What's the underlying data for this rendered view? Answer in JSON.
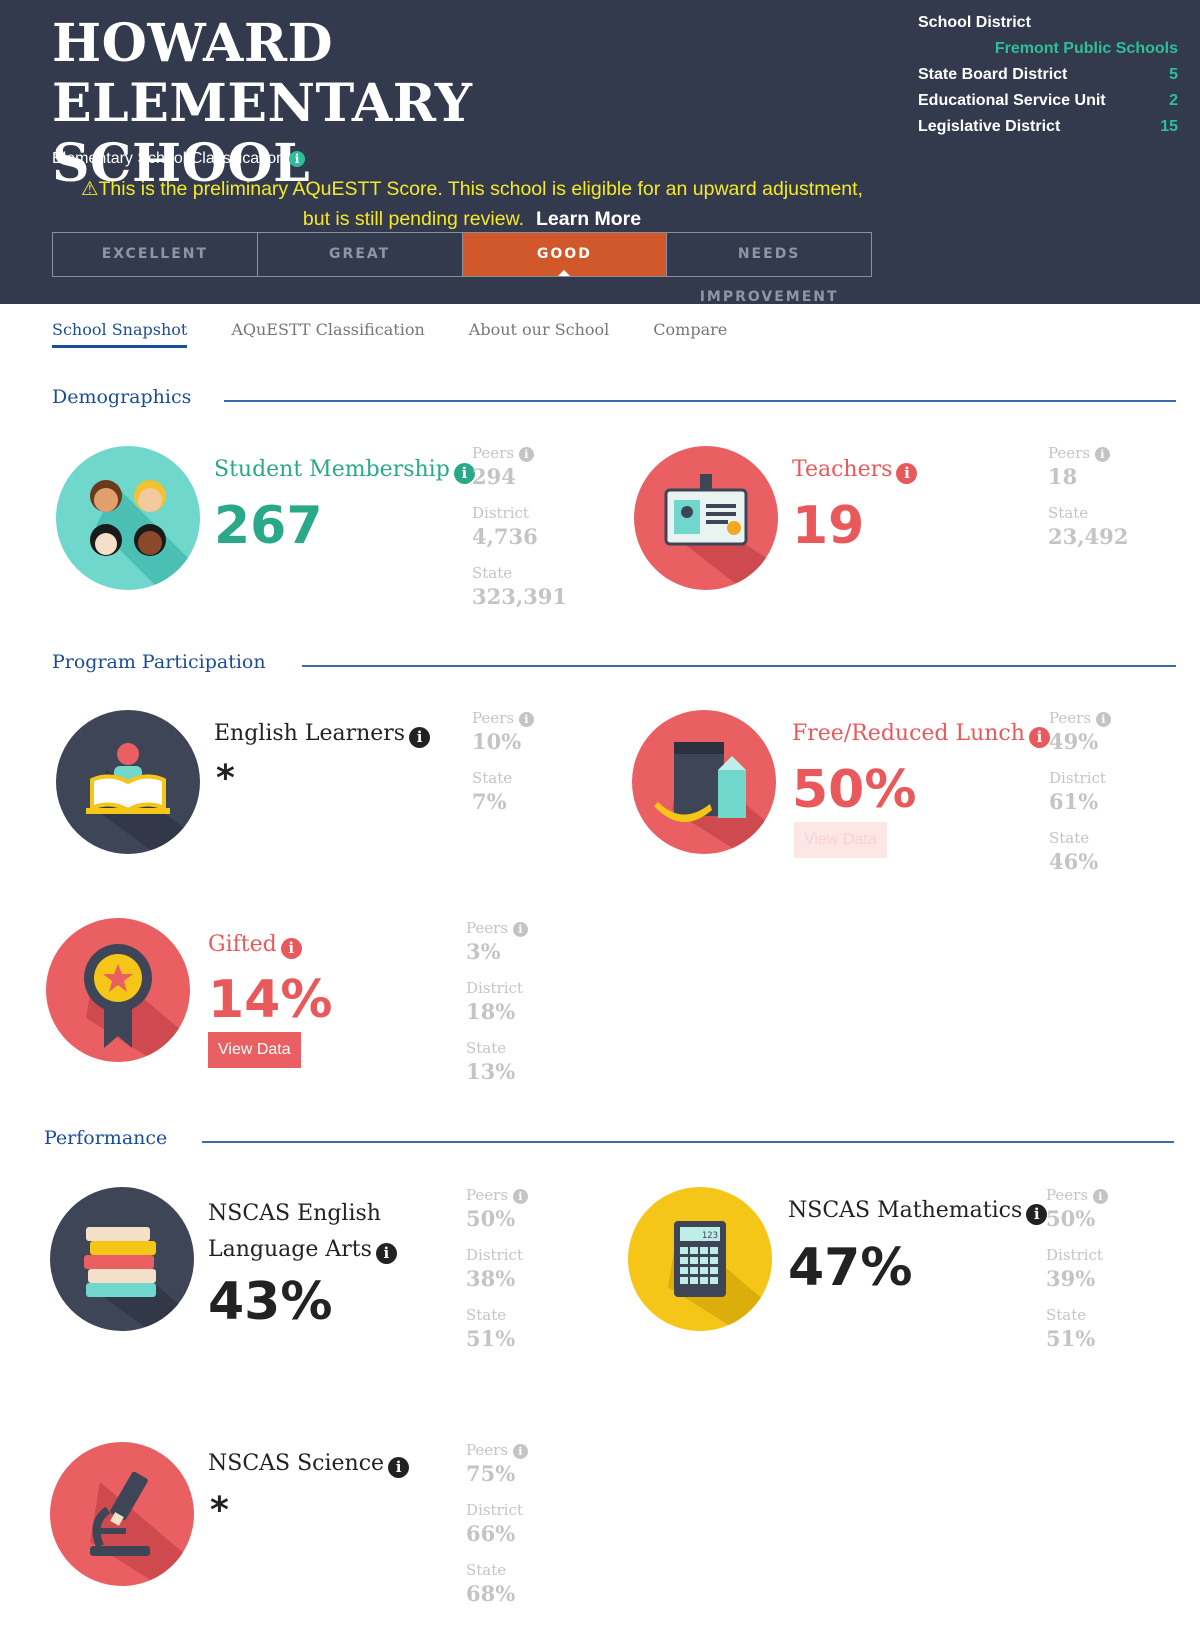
{
  "header": {
    "school_name": "HOWARD ELEMENTARY SCHOOL",
    "classification_label": "Elementary School Classification",
    "notice_line1": "This is the preliminary AQuESTT Score. This school is eligible for an upward adjustment,",
    "notice_line2": "but is still pending review.",
    "learn_more": "Learn More",
    "ratings": [
      "EXCELLENT",
      "GREAT",
      "GOOD",
      "NEEDS IMPROVEMENT"
    ],
    "active_rating": "GOOD"
  },
  "district_info": {
    "school_district_label": "School District",
    "school_district_value": "Fremont Public Schools",
    "rows": [
      {
        "label": "State Board District",
        "value": "5"
      },
      {
        "label": "Educational Service Unit",
        "value": "2"
      },
      {
        "label": "Legislative District",
        "value": "15"
      }
    ]
  },
  "tabs": [
    "School Snapshot",
    "AQuESTT Classification",
    "About our School",
    "Compare"
  ],
  "active_tab": "School Snapshot",
  "sections": {
    "demographics": "Demographics",
    "program": "Program Participation",
    "performance": "Performance"
  },
  "stats": {
    "student_membership": {
      "label": "Student Membership",
      "value": "267",
      "peers_label": "Peers",
      "peers": "294",
      "district_label": "District",
      "district": "4,736",
      "state_label": "State",
      "state": "323,391"
    },
    "teachers": {
      "label": "Teachers",
      "value": "19",
      "peers_label": "Peers",
      "peers": "18",
      "state_label": "State",
      "state": "23,492"
    },
    "english_learners": {
      "label": "English Learners",
      "value": "*",
      "peers_label": "Peers",
      "peers": "10%",
      "state_label": "State",
      "state": "7%"
    },
    "free_lunch": {
      "label": "Free/Reduced Lunch",
      "value": "50%",
      "button": "View Data",
      "peers_label": "Peers",
      "peers": "49%",
      "district_label": "District",
      "district": "61%",
      "state_label": "State",
      "state": "46%"
    },
    "gifted": {
      "label": "Gifted",
      "value": "14%",
      "button": "View Data",
      "peers_label": "Peers",
      "peers": "3%",
      "district_label": "District",
      "district": "18%",
      "state_label": "State",
      "state": "13%"
    },
    "ela": {
      "label_line1": "NSCAS English",
      "label_line2": "Language Arts",
      "value": "43%",
      "peers_label": "Peers",
      "peers": "50%",
      "district_label": "District",
      "district": "38%",
      "state_label": "State",
      "state": "51%"
    },
    "math": {
      "label": "NSCAS Mathematics",
      "value": "47%",
      "peers_label": "Peers",
      "peers": "50%",
      "district_label": "District",
      "district": "39%",
      "state_label": "State",
      "state": "51%"
    },
    "science": {
      "label": "NSCAS Science",
      "value": "*",
      "peers_label": "Peers",
      "peers": "75%",
      "district_label": "District",
      "district": "66%",
      "state_label": "State",
      "state": "68%"
    }
  },
  "icons": {
    "info": "info-icon",
    "warning": "warning-icon",
    "students": "students-icon",
    "teacher_badge": "teacher-badge-icon",
    "reading": "reading-book-icon",
    "lunch": "lunch-bag-icon",
    "ribbon": "award-ribbon-icon",
    "books": "books-stack-icon",
    "calculator": "calculator-icon",
    "microscope": "microscope-icon",
    "calculator_display": "123"
  },
  "colors": {
    "header_bg": "#333a4d",
    "active_rating": "#d0582a",
    "teal": "#2aa88a",
    "red": "#e9595c",
    "yellow": "#f5c518",
    "dark_circle": "#3e4556",
    "notice": "#f5e926",
    "link_blue": "#1a4d99"
  }
}
